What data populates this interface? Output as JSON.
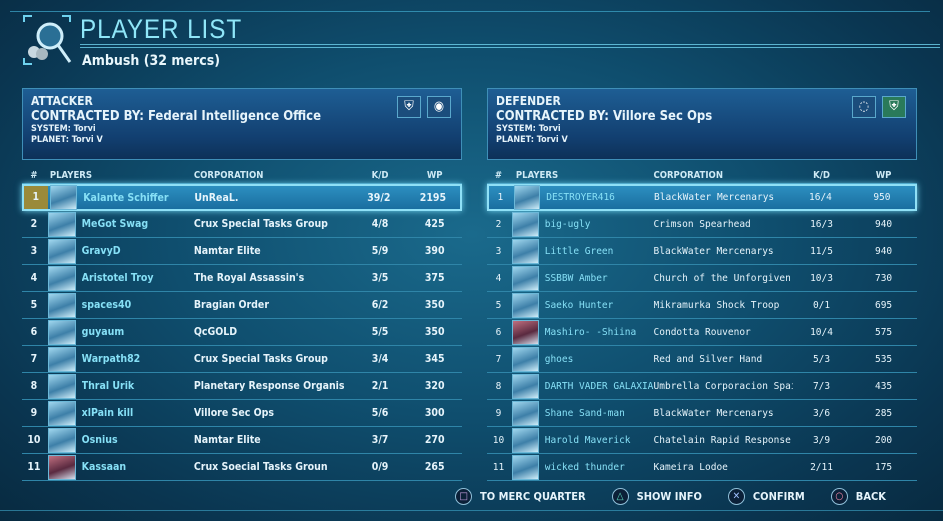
{
  "header": {
    "title": "PLAYER LIST",
    "subtitle": "Ambush (32 mercs)",
    "icon": "magnifier-mercs-icon"
  },
  "attacker": {
    "side": "ATTACKER",
    "contracted": "CONTRACTED  BY: Federal Intelligence Office",
    "system": "SYSTEM: Torvi",
    "planet": "PLANET: Torvi V",
    "columns": {
      "num": "#",
      "players": "PLAYERS",
      "corp": "CORPORATION",
      "kd": "K/D",
      "wp": "WP"
    },
    "rows": [
      {
        "num": "1",
        "player": "Kalante Schiffer",
        "corp": "UnReaL.",
        "kd": "39/2",
        "wp": "2195",
        "selected": true
      },
      {
        "num": "2",
        "player": "MeGot Swag",
        "corp": "Crux Special Tasks Group",
        "kd": "4/8",
        "wp": "425"
      },
      {
        "num": "3",
        "player": "GravyD",
        "corp": "Namtar Elite",
        "kd": "5/9",
        "wp": "390"
      },
      {
        "num": "4",
        "player": "Aristotel Troy",
        "corp": "The Royal Assassin's",
        "kd": "3/5",
        "wp": "375"
      },
      {
        "num": "5",
        "player": "spaces40",
        "corp": "Bragian Order",
        "kd": "6/2",
        "wp": "350"
      },
      {
        "num": "6",
        "player": "guyaum",
        "corp": "QcGOLD",
        "kd": "5/5",
        "wp": "350"
      },
      {
        "num": "7",
        "player": "Warpath82",
        "corp": "Crux Special Tasks Group",
        "kd": "3/4",
        "wp": "345"
      },
      {
        "num": "8",
        "player": "Thral Urik",
        "corp": "Planetary Response Organis",
        "kd": "2/1",
        "wp": "320"
      },
      {
        "num": "9",
        "player": "xlPain kill",
        "corp": "Villore Sec Ops",
        "kd": "5/6",
        "wp": "300"
      },
      {
        "num": "10",
        "player": "Osnius",
        "corp": "Namtar Elite",
        "kd": "3/7",
        "wp": "270"
      },
      {
        "num": "11",
        "player": "Kassaan",
        "corp": "Crux Soecial Tasks Groun",
        "kd": "0/9",
        "wp": "265",
        "red": true
      }
    ]
  },
  "defender": {
    "side": "DEFENDER",
    "contracted": "CONTRACTED  BY: Villore Sec Ops",
    "system": "SYSTEM: Torvi",
    "planet": "PLANET: Torvi V",
    "columns": {
      "num": "#",
      "players": "PLAYERS",
      "corp": "CORPORATION",
      "kd": "K/D",
      "wp": "WP"
    },
    "rows": [
      {
        "num": "1",
        "player": "DESTROYER416",
        "corp": "BlackWater Mercenarys",
        "kd": "16/4",
        "wp": "950",
        "selected": true
      },
      {
        "num": "2",
        "player": "big-ugly",
        "corp": "Crimson Spearhead",
        "kd": "16/3",
        "wp": "940"
      },
      {
        "num": "3",
        "player": "Little Green",
        "corp": "BlackWater Mercenarys",
        "kd": "11/5",
        "wp": "940"
      },
      {
        "num": "4",
        "player": "SSBBW Amber",
        "corp": "Church of the Unforgiven",
        "kd": "10/3",
        "wp": "730"
      },
      {
        "num": "5",
        "player": "Saeko Hunter",
        "corp": "Mikramurka Shock Troop",
        "kd": "0/1",
        "wp": "695"
      },
      {
        "num": "6",
        "player": "Mashiro- -Shiina",
        "corp": "Condotta Rouvenor",
        "kd": "10/4",
        "wp": "575",
        "red": true
      },
      {
        "num": "7",
        "player": "ghoes",
        "corp": "Red and Silver Hand",
        "kd": "5/3",
        "wp": "535"
      },
      {
        "num": "8",
        "player": "DARTH VADER GALAXIA",
        "corp": "Umbrella Corporacion Spain",
        "kd": "7/3",
        "wp": "435"
      },
      {
        "num": "9",
        "player": "Shane Sand-man",
        "corp": "BlackWater Mercenarys",
        "kd": "3/6",
        "wp": "285"
      },
      {
        "num": "10",
        "player": "Harold Maverick",
        "corp": "Chatelain Rapid Response",
        "kd": "3/9",
        "wp": "200"
      },
      {
        "num": "11",
        "player": "wicked thunder",
        "corp": "Kameira Lodoe",
        "kd": "2/11",
        "wp": "175"
      }
    ]
  },
  "footer": [
    {
      "icon": "square-button-icon",
      "glyph": "□",
      "label": "TO MERC QUARTER",
      "color": "#c8a0e0"
    },
    {
      "icon": "triangle-button-icon",
      "glyph": "△",
      "label": "SHOW INFO",
      "color": "#5fe0c0"
    },
    {
      "icon": "cross-button-icon",
      "glyph": "✕",
      "label": "CONFIRM",
      "color": "#a0c0ff"
    },
    {
      "icon": "circle-button-icon",
      "glyph": "○",
      "label": "BACK",
      "color": "#ff90b0"
    }
  ]
}
